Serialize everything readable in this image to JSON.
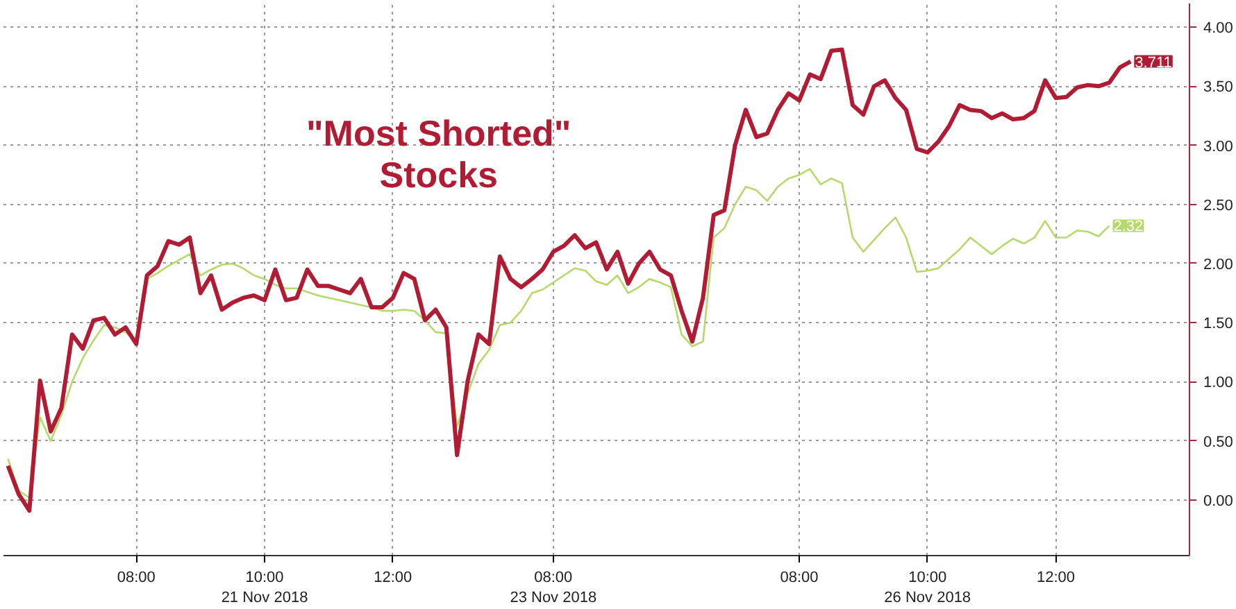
{
  "chart_data": {
    "type": "line",
    "title": "\"Most Shorted\" Stocks",
    "categories": [
      null,
      null,
      null,
      null,
      null,
      null,
      null,
      null,
      null,
      null,
      null,
      null,
      "08:00",
      null,
      null,
      null,
      null,
      null,
      null,
      null,
      null,
      null,
      null,
      null,
      "10:00\n21 Nov 2018",
      null,
      null,
      null,
      null,
      null,
      null,
      null,
      null,
      null,
      null,
      null,
      "12:00",
      null,
      null,
      null,
      null,
      null,
      null,
      null,
      null,
      null,
      null,
      null,
      null,
      null,
      null,
      "08:00\n23 Nov 2018",
      null,
      null,
      null,
      null,
      null,
      null,
      null,
      null,
      null,
      null,
      null,
      null,
      null,
      null,
      null,
      null,
      null,
      null,
      null,
      null,
      null,
      null,
      "08:00",
      null,
      null,
      null,
      null,
      null,
      null,
      null,
      null,
      null,
      null,
      null,
      "10:00\n26 Nov 2018",
      null,
      null,
      null,
      null,
      null,
      null,
      null,
      null,
      null,
      null,
      null,
      "12:00",
      null,
      null,
      null,
      null,
      null,
      null,
      null
    ],
    "ylim": [
      -0.47,
      4.2
    ],
    "yticks": [
      {
        "value": 0,
        "label": "0.00"
      },
      {
        "value": 0.5,
        "label": "0.50"
      },
      {
        "value": 1,
        "label": "1.00"
      },
      {
        "value": 1.5,
        "label": "1.50"
      },
      {
        "value": 2,
        "label": "2.00"
      },
      {
        "value": 2.5,
        "label": "2.50"
      },
      {
        "value": 3,
        "label": "3.00"
      },
      {
        "value": 3.5,
        "label": "3.50"
      },
      {
        "value": 4,
        "label": "4.00"
      }
    ],
    "grid": true,
    "line_style": "solid",
    "annotations": [
      "3.711",
      "2.32"
    ],
    "series": [
      {
        "color": "#b5d96b",
        "values": [
          0.35,
          0.08,
          0.02,
          0.7,
          0.5,
          0.72,
          1.0,
          1.2,
          1.35,
          1.48,
          1.46,
          1.42,
          1.34,
          1.87,
          1.92,
          1.98,
          2.03,
          2.08,
          1.9,
          1.95,
          1.99,
          2.0,
          1.96,
          1.9,
          1.87,
          1.82,
          1.79,
          1.79,
          1.76,
          1.73,
          1.71,
          1.69,
          1.67,
          1.65,
          1.63,
          1.6,
          1.6,
          1.61,
          1.6,
          1.52,
          1.42,
          1.41,
          0.62,
          0.9,
          1.15,
          1.27,
          1.48,
          1.5,
          1.6,
          1.75,
          1.78,
          1.84,
          1.9,
          1.96,
          1.94,
          1.85,
          1.82,
          1.9,
          1.75,
          1.8,
          1.87,
          1.84,
          1.8,
          1.4,
          1.3,
          1.34,
          2.22,
          2.3,
          2.5,
          2.65,
          2.62,
          2.53,
          2.65,
          2.72,
          2.75,
          2.8,
          2.67,
          2.72,
          2.68,
          2.22,
          2.1,
          2.2,
          2.3,
          2.39,
          2.22,
          1.93,
          1.94,
          1.96,
          2.04,
          2.12,
          2.22,
          2.15,
          2.08,
          2.15,
          2.21,
          2.17,
          2.22,
          2.36,
          2.22,
          2.22,
          2.28,
          2.27,
          2.23,
          2.32,
          null,
          null
        ]
      },
      {
        "color": "#b01c34",
        "values": [
          0.29,
          0.05,
          -0.09,
          1.01,
          0.58,
          0.78,
          1.4,
          1.28,
          1.52,
          1.54,
          1.4,
          1.46,
          1.32,
          1.9,
          1.98,
          2.19,
          2.16,
          2.22,
          1.75,
          1.9,
          1.61,
          1.67,
          1.71,
          1.73,
          1.69,
          1.95,
          1.69,
          1.71,
          1.95,
          1.81,
          1.81,
          1.78,
          1.75,
          1.87,
          1.63,
          1.63,
          1.71,
          1.92,
          1.87,
          1.52,
          1.61,
          1.46,
          0.38,
          1.01,
          1.4,
          1.32,
          2.06,
          1.87,
          1.8,
          1.87,
          1.95,
          2.1,
          2.15,
          2.24,
          2.13,
          2.18,
          1.95,
          2.1,
          1.83,
          2.0,
          2.1,
          1.95,
          1.9,
          1.6,
          1.34,
          1.71,
          2.41,
          2.45,
          3.0,
          3.3,
          3.07,
          3.1,
          3.3,
          3.44,
          3.38,
          3.6,
          3.56,
          3.8,
          3.81,
          3.34,
          3.26,
          3.5,
          3.55,
          3.4,
          3.3,
          2.97,
          2.94,
          3.03,
          3.16,
          3.34,
          3.3,
          3.29,
          3.23,
          3.27,
          3.22,
          3.23,
          3.29,
          3.55,
          3.4,
          3.41,
          3.49,
          3.51,
          3.5,
          3.53,
          3.66,
          3.71
        ]
      }
    ]
  }
}
